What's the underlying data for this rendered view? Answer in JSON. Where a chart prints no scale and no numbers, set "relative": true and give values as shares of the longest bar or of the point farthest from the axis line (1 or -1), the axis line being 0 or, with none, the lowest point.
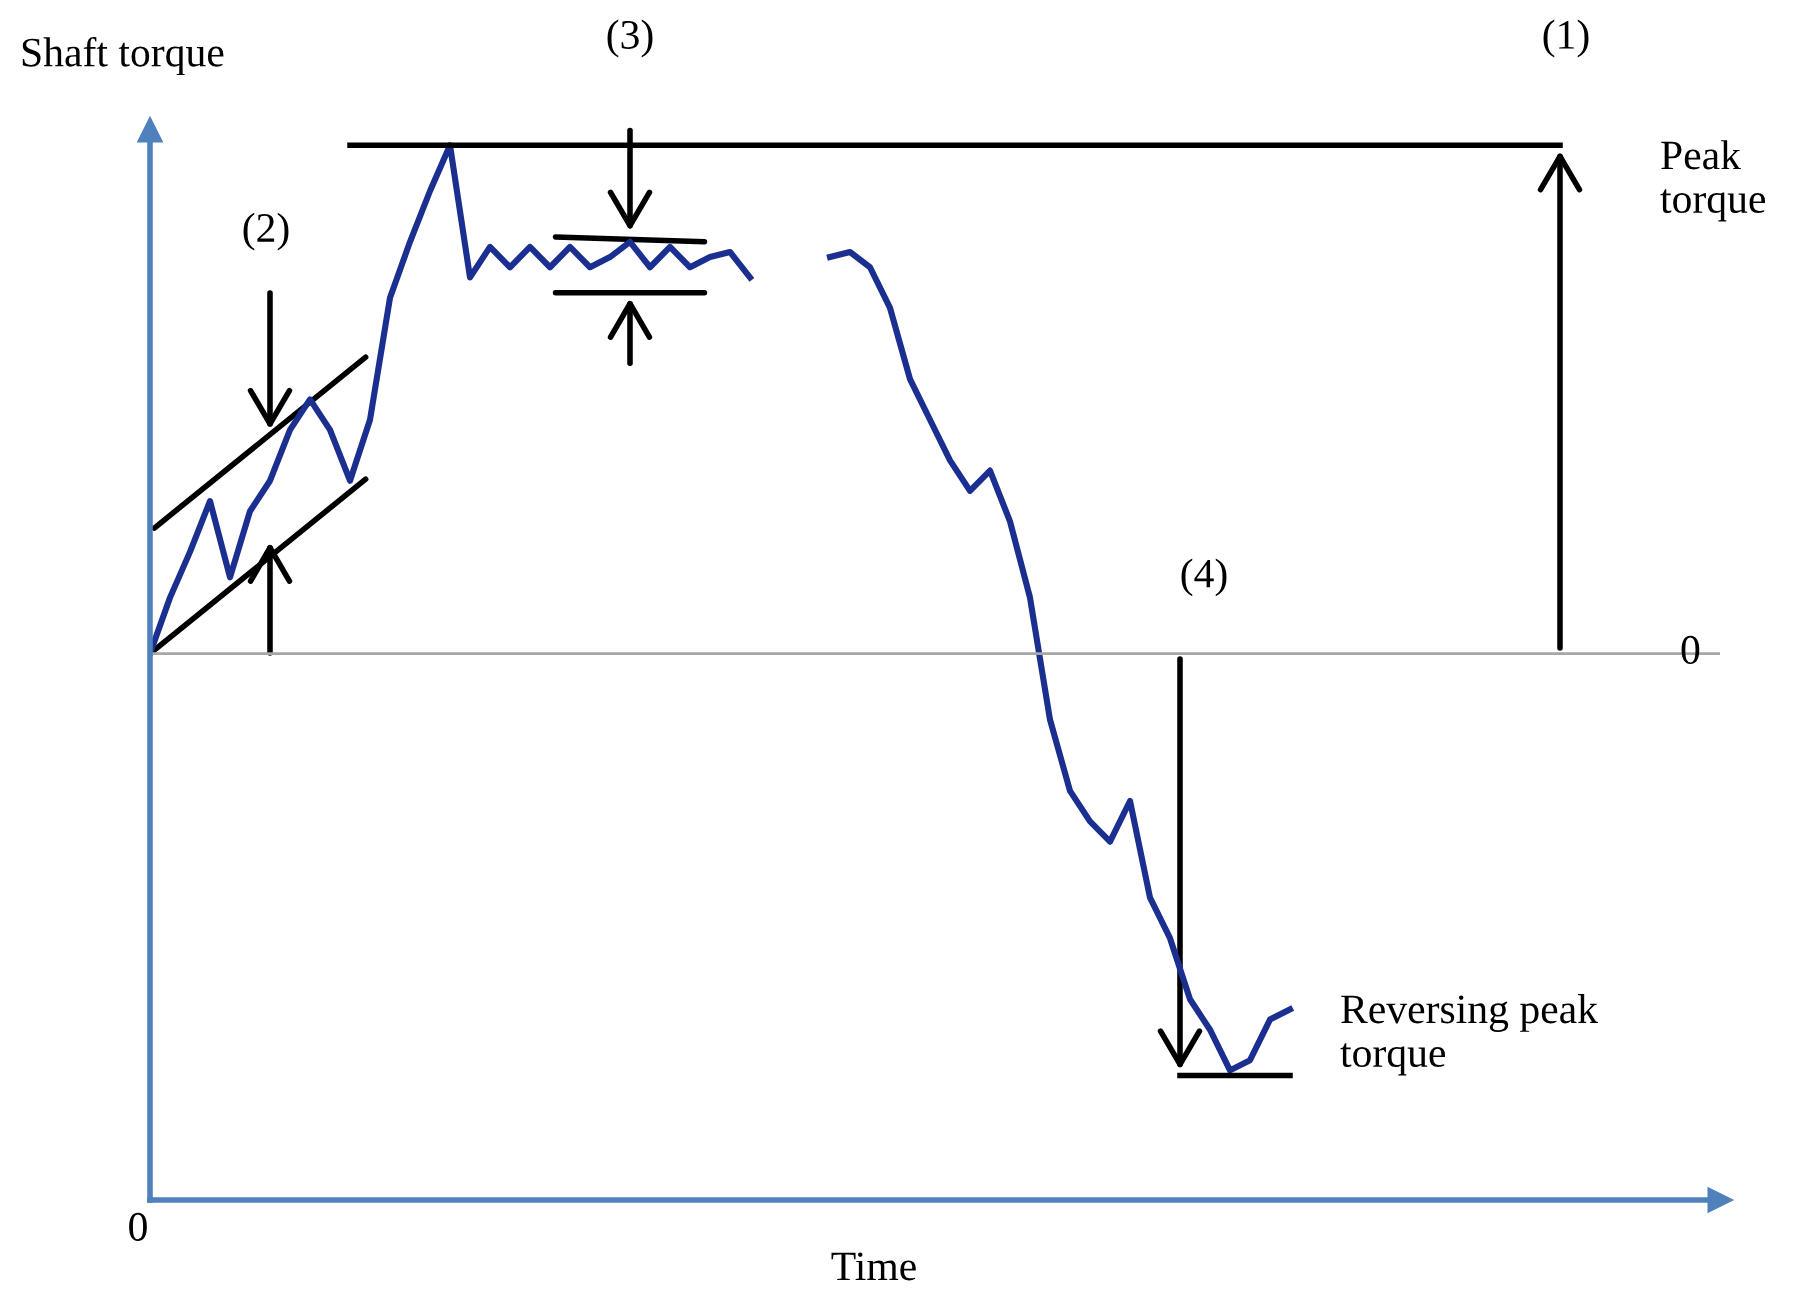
{
  "chart_data": {
    "type": "line",
    "relative": true,
    "xlabel": "Time",
    "ylabel": "Shaft torque",
    "tick_labels": false,
    "marker": "none",
    "line_style": "solid",
    "categories": [
      null,
      null,
      null,
      null,
      null,
      null,
      null,
      null,
      null,
      null,
      null,
      null,
      null,
      null,
      null,
      null,
      null,
      null,
      null,
      null,
      null,
      null,
      null,
      null,
      null,
      null,
      null,
      null,
      null,
      null,
      null,
      null,
      null,
      null,
      null,
      null,
      null,
      null,
      null,
      null,
      null,
      null,
      null,
      null,
      null,
      null,
      null,
      null,
      null,
      null,
      null,
      null,
      null,
      null,
      null,
      null,
      null,
      null
    ],
    "series": [
      {
        "color": "#1a2f8f",
        "values": [
          0,
          0.11,
          0.2,
          0.3,
          0.15,
          0.28,
          0.34,
          0.44,
          0.5,
          0.44,
          0.34,
          0.46,
          0.7,
          0.81,
          0.91,
          1,
          0.74,
          0.8,
          0.76,
          0.8,
          0.76,
          0.8,
          0.76,
          0.78,
          0.81,
          0.76,
          0.8,
          0.76,
          0.78,
          0.79,
          0.74,
          null,
          null,
          null,
          null,
          null,
          null,
          null,
          null,
          null,
          null,
          null,
          null,
          null,
          null,
          null,
          null,
          null,
          null,
          null,
          null,
          null,
          null,
          null,
          null,
          null,
          null,
          null
        ]
      },
      {
        "color": "#1a2f8f",
        "values": [
          null,
          null,
          null,
          null,
          null,
          null,
          null,
          null,
          null,
          null,
          null,
          null,
          null,
          null,
          null,
          null,
          null,
          null,
          null,
          null,
          null,
          null,
          null,
          null,
          null,
          null,
          null,
          null,
          null,
          null,
          null,
          null,
          null,
          null,
          0.78,
          0.79,
          0.76,
          0.68,
          0.54,
          0.46,
          0.38,
          0.32,
          0.36,
          0.26,
          0.11,
          -0.13,
          -0.27,
          -0.33,
          -0.37,
          -0.29,
          -0.48,
          -0.56,
          -0.68,
          -0.74,
          -0.82,
          -0.8,
          -0.72,
          -0.7
        ]
      }
    ],
    "ref_lines": [
      {
        "axis": "y",
        "value": 0,
        "label": "0",
        "color": "#a6a6a6"
      },
      {
        "axis": "y",
        "value": 1,
        "label": "Peak torque",
        "color": "#000000"
      },
      {
        "axis": "y",
        "value": -0.83,
        "label": "Reversing peak torque",
        "color": "#000000"
      }
    ],
    "annotations": [
      "(1)",
      "(2)",
      "(3)",
      "(4)",
      "0"
    ]
  }
}
